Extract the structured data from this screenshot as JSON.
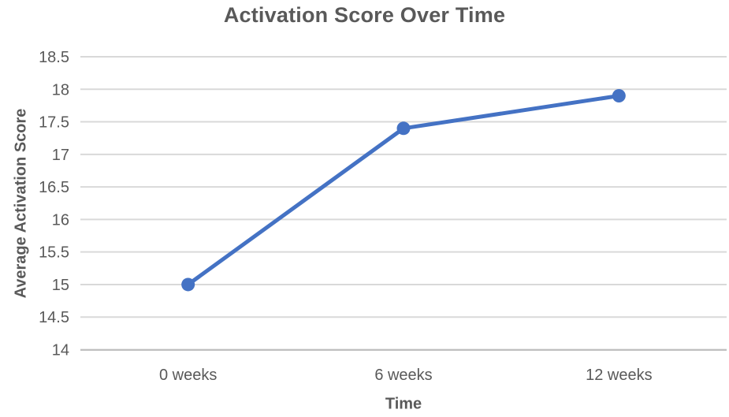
{
  "chart_data": {
    "type": "line",
    "title": "Activation Score Over Time",
    "xlabel": "Time",
    "ylabel": "Average Activation Score",
    "categories": [
      "0 weeks",
      "6 weeks",
      "12 weeks"
    ],
    "series": [
      {
        "name": "Average Activation Score",
        "values": [
          15,
          17.4,
          17.9
        ]
      }
    ],
    "ylim": [
      14,
      18.5
    ],
    "yticks": [
      14,
      14.5,
      15,
      15.5,
      16,
      16.5,
      17,
      17.5,
      18,
      18.5
    ],
    "grid": "horizontal",
    "legend_position": "none",
    "marker": "circle",
    "colors": {
      "line": "#4472C4",
      "marker": "#4472C4",
      "gridline": "#D9D9D9",
      "axis_line": "#BFBFBF",
      "text": "#595959"
    }
  }
}
